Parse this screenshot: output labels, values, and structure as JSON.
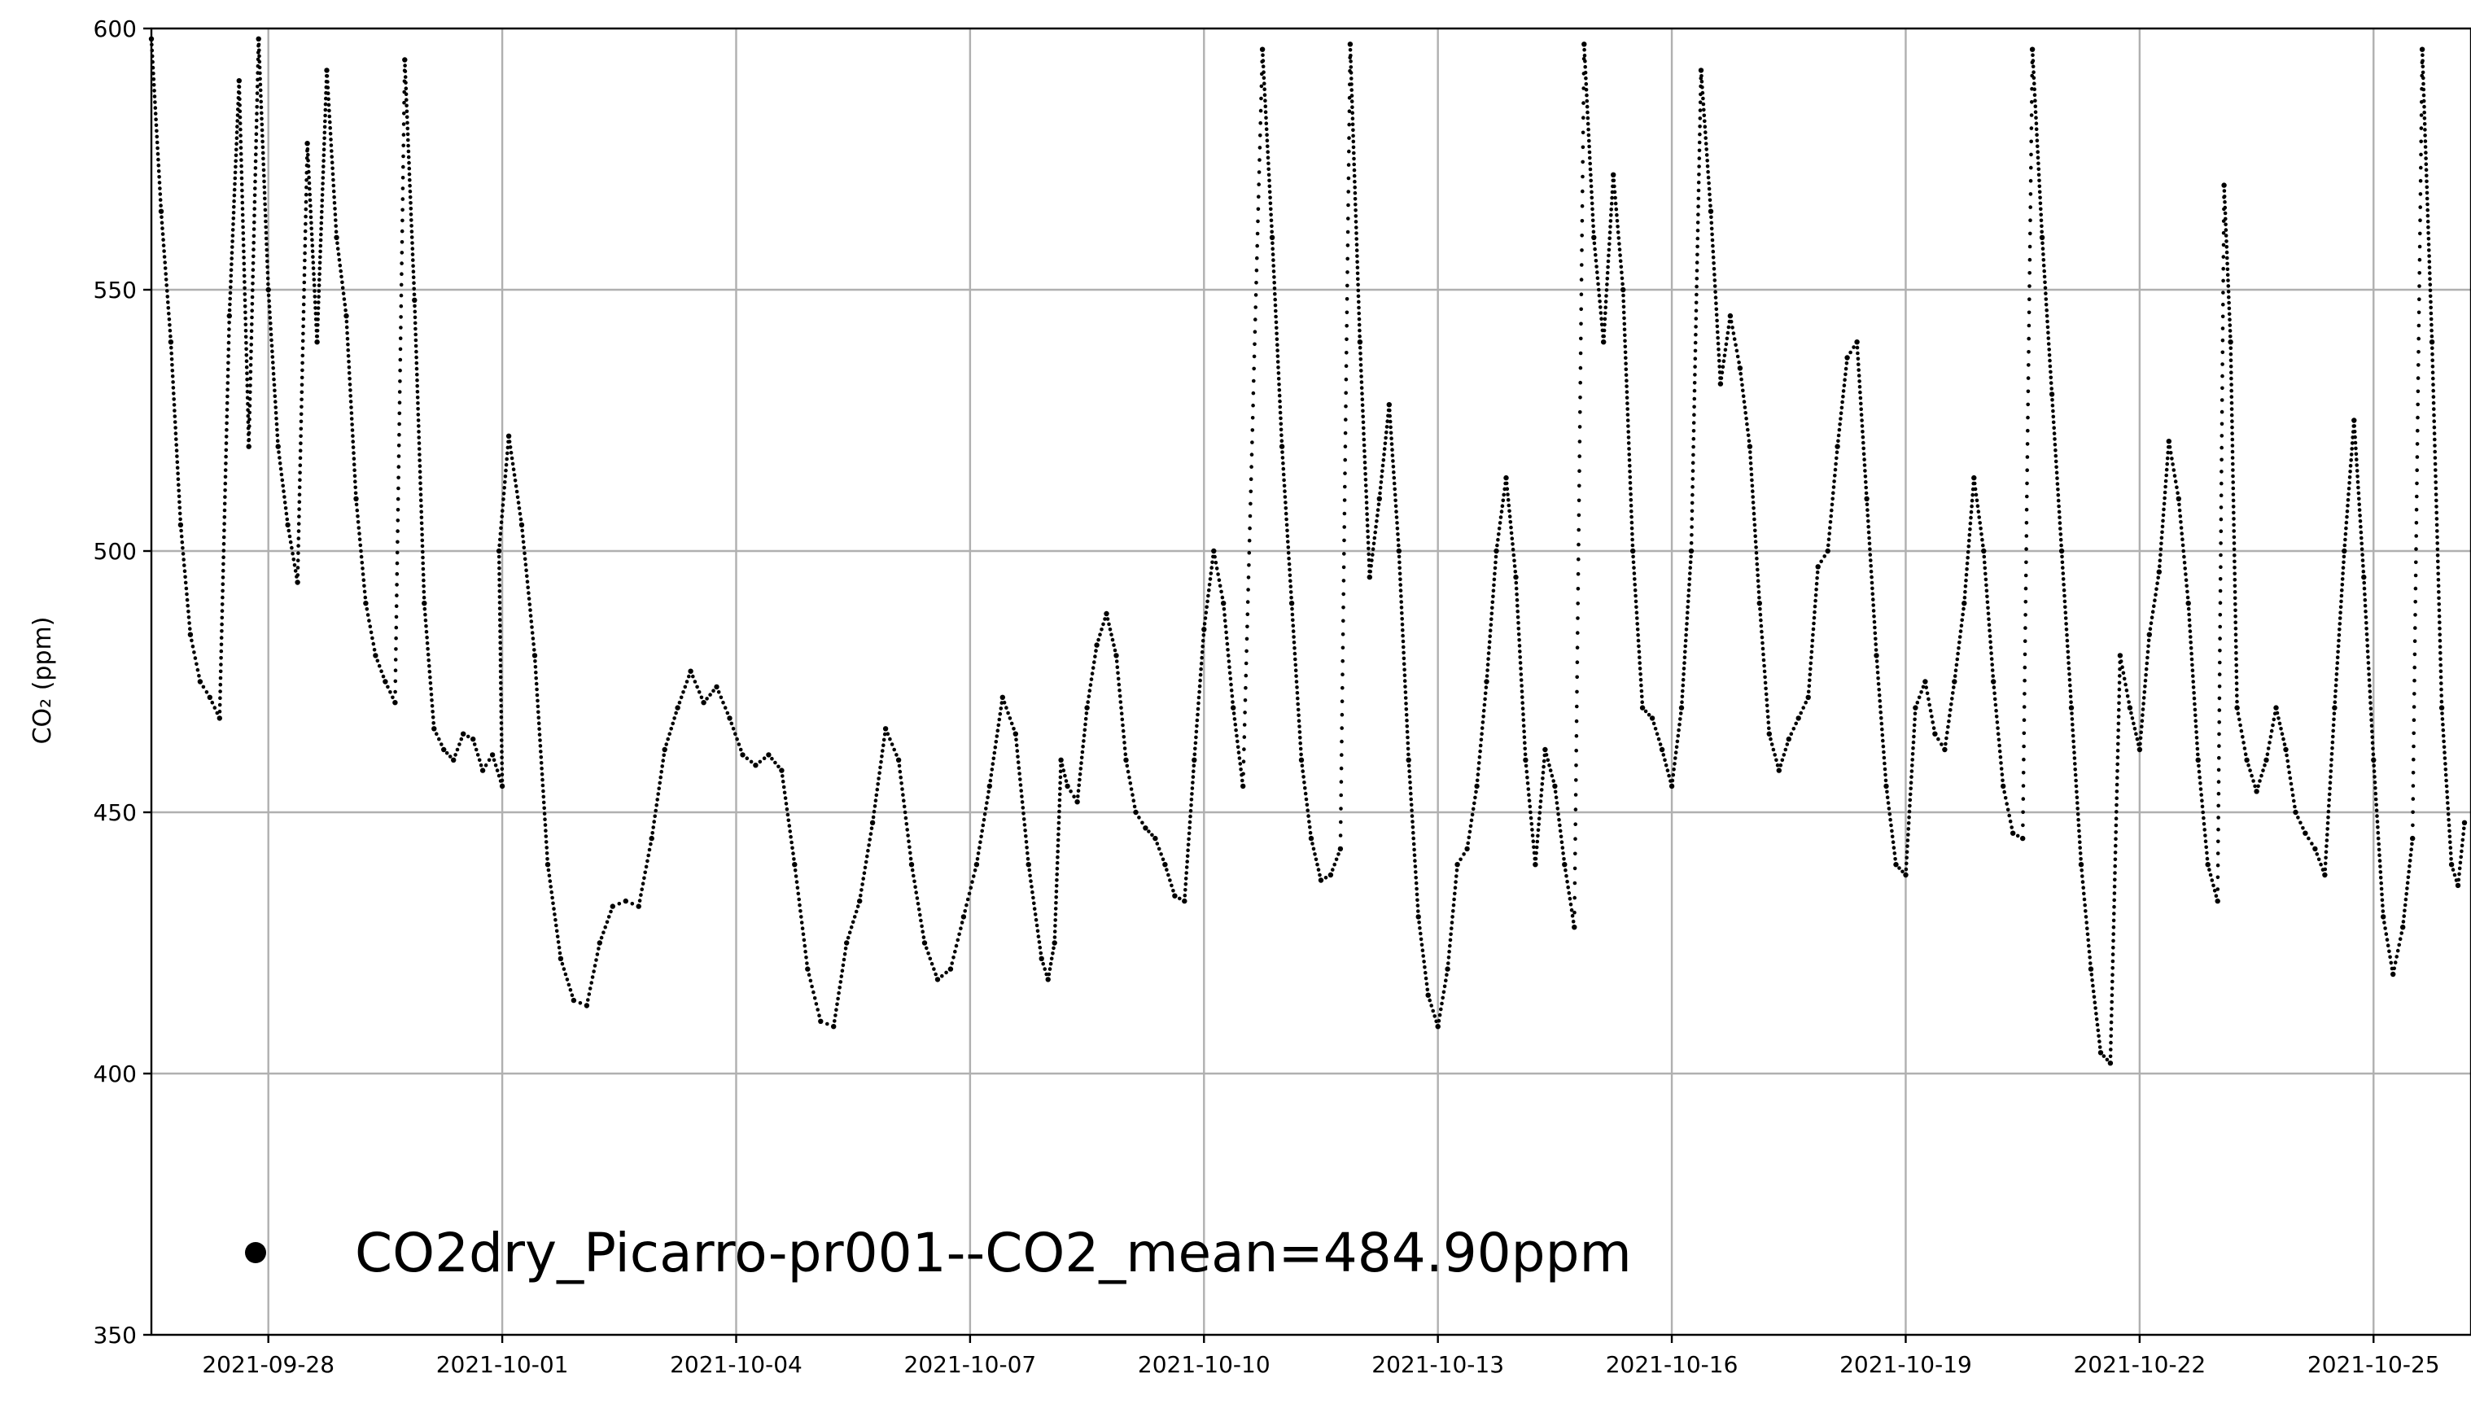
{
  "chart_data": {
    "type": "scatter",
    "title": "",
    "xlabel": "",
    "ylabel": "CO₂ (ppm)",
    "ylim": [
      350,
      600
    ],
    "xlim": [
      "2021-09-26T12:00",
      "2021-10-26T06:00"
    ],
    "grid": true,
    "legend_placement": "bottom-left",
    "marker_color": "#000000",
    "x_ticks": [
      "2021-09-28",
      "2021-10-01",
      "2021-10-04",
      "2021-10-07",
      "2021-10-10",
      "2021-10-13",
      "2021-10-16",
      "2021-10-19",
      "2021-10-22",
      "2021-10-25"
    ],
    "y_ticks": [
      350,
      400,
      450,
      500,
      550,
      600
    ],
    "series": [
      {
        "name": "CO2dry_Picarro-pr001--CO2_mean=484.90ppm",
        "points": [
          [
            "2021-09-26T12:00",
            598
          ],
          [
            "2021-09-26T15:00",
            565
          ],
          [
            "2021-09-26T18:00",
            540
          ],
          [
            "2021-09-26T21:00",
            505
          ],
          [
            "2021-09-27T00:00",
            484
          ],
          [
            "2021-09-27T03:00",
            475
          ],
          [
            "2021-09-27T06:00",
            472
          ],
          [
            "2021-09-27T09:00",
            468
          ],
          [
            "2021-09-27T12:00",
            545
          ],
          [
            "2021-09-27T15:00",
            590
          ],
          [
            "2021-09-27T18:00",
            520
          ],
          [
            "2021-09-27T21:00",
            598
          ],
          [
            "2021-09-28T00:00",
            550
          ],
          [
            "2021-09-28T03:00",
            520
          ],
          [
            "2021-09-28T06:00",
            505
          ],
          [
            "2021-09-28T09:00",
            494
          ],
          [
            "2021-09-28T12:00",
            578
          ],
          [
            "2021-09-28T15:00",
            540
          ],
          [
            "2021-09-28T18:00",
            592
          ],
          [
            "2021-09-28T21:00",
            560
          ],
          [
            "2021-09-29T00:00",
            545
          ],
          [
            "2021-09-29T03:00",
            510
          ],
          [
            "2021-09-29T06:00",
            490
          ],
          [
            "2021-09-29T09:00",
            480
          ],
          [
            "2021-09-29T12:00",
            475
          ],
          [
            "2021-09-29T15:00",
            471
          ],
          [
            "2021-09-29T18:00",
            594
          ],
          [
            "2021-09-29T21:00",
            548
          ],
          [
            "2021-09-30T00:00",
            490
          ],
          [
            "2021-09-30T03:00",
            466
          ],
          [
            "2021-09-30T06:00",
            462
          ],
          [
            "2021-09-30T09:00",
            460
          ],
          [
            "2021-09-30T12:00",
            465
          ],
          [
            "2021-09-30T15:00",
            464
          ],
          [
            "2021-09-30T18:00",
            458
          ],
          [
            "2021-09-30T21:00",
            461
          ],
          [
            "2021-10-01T00:00",
            455
          ],
          [
            "2021-09-30T23:00",
            500
          ],
          [
            "2021-10-01T02:00",
            522
          ],
          [
            "2021-10-01T06:00",
            505
          ],
          [
            "2021-10-01T10:00",
            480
          ],
          [
            "2021-10-01T14:00",
            440
          ],
          [
            "2021-10-01T18:00",
            422
          ],
          [
            "2021-10-01T22:00",
            414
          ],
          [
            "2021-10-02T02:00",
            413
          ],
          [
            "2021-10-02T06:00",
            425
          ],
          [
            "2021-10-02T10:00",
            432
          ],
          [
            "2021-10-02T14:00",
            433
          ],
          [
            "2021-10-02T18:00",
            432
          ],
          [
            "2021-10-02T22:00",
            445
          ],
          [
            "2021-10-03T02:00",
            462
          ],
          [
            "2021-10-03T06:00",
            470
          ],
          [
            "2021-10-03T10:00",
            477
          ],
          [
            "2021-10-03T14:00",
            471
          ],
          [
            "2021-10-03T18:00",
            474
          ],
          [
            "2021-10-03T22:00",
            468
          ],
          [
            "2021-10-04T02:00",
            461
          ],
          [
            "2021-10-04T06:00",
            459
          ],
          [
            "2021-10-04T10:00",
            461
          ],
          [
            "2021-10-04T14:00",
            458
          ],
          [
            "2021-10-04T18:00",
            440
          ],
          [
            "2021-10-04T22:00",
            420
          ],
          [
            "2021-10-05T02:00",
            410
          ],
          [
            "2021-10-05T06:00",
            409
          ],
          [
            "2021-10-05T10:00",
            425
          ],
          [
            "2021-10-05T14:00",
            433
          ],
          [
            "2021-10-05T18:00",
            448
          ],
          [
            "2021-10-05T22:00",
            466
          ],
          [
            "2021-10-06T02:00",
            460
          ],
          [
            "2021-10-06T06:00",
            440
          ],
          [
            "2021-10-06T10:00",
            425
          ],
          [
            "2021-10-06T14:00",
            418
          ],
          [
            "2021-10-06T18:00",
            420
          ],
          [
            "2021-10-06T22:00",
            430
          ],
          [
            "2021-10-07T02:00",
            440
          ],
          [
            "2021-10-07T06:00",
            455
          ],
          [
            "2021-10-07T10:00",
            472
          ],
          [
            "2021-10-07T14:00",
            465
          ],
          [
            "2021-10-07T18:00",
            440
          ],
          [
            "2021-10-07T22:00",
            422
          ],
          [
            "2021-10-08T00:00",
            418
          ],
          [
            "2021-10-08T02:00",
            425
          ],
          [
            "2021-10-08T04:00",
            460
          ],
          [
            "2021-10-08T06:00",
            455
          ],
          [
            "2021-10-08T09:00",
            452
          ],
          [
            "2021-10-08T12:00",
            470
          ],
          [
            "2021-10-08T15:00",
            482
          ],
          [
            "2021-10-08T18:00",
            488
          ],
          [
            "2021-10-08T21:00",
            480
          ],
          [
            "2021-10-09T00:00",
            460
          ],
          [
            "2021-10-09T03:00",
            450
          ],
          [
            "2021-10-09T06:00",
            447
          ],
          [
            "2021-10-09T09:00",
            445
          ],
          [
            "2021-10-09T12:00",
            440
          ],
          [
            "2021-10-09T15:00",
            434
          ],
          [
            "2021-10-09T18:00",
            433
          ],
          [
            "2021-10-09T21:00",
            460
          ],
          [
            "2021-10-10T00:00",
            485
          ],
          [
            "2021-10-10T03:00",
            500
          ],
          [
            "2021-10-10T06:00",
            490
          ],
          [
            "2021-10-10T09:00",
            470
          ],
          [
            "2021-10-10T12:00",
            455
          ],
          [
            "2021-10-10T18:00",
            596
          ],
          [
            "2021-10-10T21:00",
            560
          ],
          [
            "2021-10-11T00:00",
            520
          ],
          [
            "2021-10-11T03:00",
            490
          ],
          [
            "2021-10-11T06:00",
            460
          ],
          [
            "2021-10-11T09:00",
            445
          ],
          [
            "2021-10-11T12:00",
            437
          ],
          [
            "2021-10-11T15:00",
            438
          ],
          [
            "2021-10-11T18:00",
            443
          ],
          [
            "2021-10-11T21:00",
            597
          ],
          [
            "2021-10-12T00:00",
            540
          ],
          [
            "2021-10-12T03:00",
            495
          ],
          [
            "2021-10-12T06:00",
            510
          ],
          [
            "2021-10-12T09:00",
            528
          ],
          [
            "2021-10-12T12:00",
            500
          ],
          [
            "2021-10-12T15:00",
            460
          ],
          [
            "2021-10-12T18:00",
            430
          ],
          [
            "2021-10-12T21:00",
            415
          ],
          [
            "2021-10-13T00:00",
            409
          ],
          [
            "2021-10-13T03:00",
            420
          ],
          [
            "2021-10-13T06:00",
            440
          ],
          [
            "2021-10-13T09:00",
            443
          ],
          [
            "2021-10-13T12:00",
            455
          ],
          [
            "2021-10-13T15:00",
            475
          ],
          [
            "2021-10-13T18:00",
            500
          ],
          [
            "2021-10-13T21:00",
            514
          ],
          [
            "2021-10-14T00:00",
            495
          ],
          [
            "2021-10-14T03:00",
            460
          ],
          [
            "2021-10-14T06:00",
            440
          ],
          [
            "2021-10-14T09:00",
            462
          ],
          [
            "2021-10-14T12:00",
            455
          ],
          [
            "2021-10-14T15:00",
            440
          ],
          [
            "2021-10-14T18:00",
            428
          ],
          [
            "2021-10-14T21:00",
            597
          ],
          [
            "2021-10-15T00:00",
            560
          ],
          [
            "2021-10-15T03:00",
            540
          ],
          [
            "2021-10-15T06:00",
            572
          ],
          [
            "2021-10-15T09:00",
            550
          ],
          [
            "2021-10-15T12:00",
            500
          ],
          [
            "2021-10-15T15:00",
            470
          ],
          [
            "2021-10-15T18:00",
            468
          ],
          [
            "2021-10-15T21:00",
            462
          ],
          [
            "2021-10-16T00:00",
            455
          ],
          [
            "2021-10-16T03:00",
            470
          ],
          [
            "2021-10-16T06:00",
            500
          ],
          [
            "2021-10-16T09:00",
            592
          ],
          [
            "2021-10-16T12:00",
            565
          ],
          [
            "2021-10-16T15:00",
            532
          ],
          [
            "2021-10-16T18:00",
            545
          ],
          [
            "2021-10-16T21:00",
            535
          ],
          [
            "2021-10-17T00:00",
            520
          ],
          [
            "2021-10-17T03:00",
            490
          ],
          [
            "2021-10-17T06:00",
            465
          ],
          [
            "2021-10-17T09:00",
            458
          ],
          [
            "2021-10-17T12:00",
            464
          ],
          [
            "2021-10-17T15:00",
            468
          ],
          [
            "2021-10-17T18:00",
            472
          ],
          [
            "2021-10-17T21:00",
            497
          ],
          [
            "2021-10-18T00:00",
            500
          ],
          [
            "2021-10-18T03:00",
            520
          ],
          [
            "2021-10-18T06:00",
            537
          ],
          [
            "2021-10-18T09:00",
            540
          ],
          [
            "2021-10-18T12:00",
            510
          ],
          [
            "2021-10-18T15:00",
            480
          ],
          [
            "2021-10-18T18:00",
            455
          ],
          [
            "2021-10-18T21:00",
            440
          ],
          [
            "2021-10-19T00:00",
            438
          ],
          [
            "2021-10-19T03:00",
            470
          ],
          [
            "2021-10-19T06:00",
            475
          ],
          [
            "2021-10-19T09:00",
            465
          ],
          [
            "2021-10-19T12:00",
            462
          ],
          [
            "2021-10-19T15:00",
            475
          ],
          [
            "2021-10-19T18:00",
            490
          ],
          [
            "2021-10-19T21:00",
            514
          ],
          [
            "2021-10-20T00:00",
            500
          ],
          [
            "2021-10-20T03:00",
            475
          ],
          [
            "2021-10-20T06:00",
            455
          ],
          [
            "2021-10-20T09:00",
            446
          ],
          [
            "2021-10-20T12:00",
            445
          ],
          [
            "2021-10-20T15:00",
            596
          ],
          [
            "2021-10-20T18:00",
            560
          ],
          [
            "2021-10-20T21:00",
            530
          ],
          [
            "2021-10-21T00:00",
            500
          ],
          [
            "2021-10-21T03:00",
            470
          ],
          [
            "2021-10-21T06:00",
            440
          ],
          [
            "2021-10-21T09:00",
            420
          ],
          [
            "2021-10-21T12:00",
            404
          ],
          [
            "2021-10-21T15:00",
            402
          ],
          [
            "2021-10-21T18:00",
            480
          ],
          [
            "2021-10-21T21:00",
            470
          ],
          [
            "2021-10-22T00:00",
            462
          ],
          [
            "2021-10-22T03:00",
            484
          ],
          [
            "2021-10-22T06:00",
            496
          ],
          [
            "2021-10-22T09:00",
            521
          ],
          [
            "2021-10-22T12:00",
            510
          ],
          [
            "2021-10-22T15:00",
            490
          ],
          [
            "2021-10-22T18:00",
            460
          ],
          [
            "2021-10-22T21:00",
            440
          ],
          [
            "2021-10-23T00:00",
            433
          ],
          [
            "2021-10-23T02:00",
            570
          ],
          [
            "2021-10-23T04:00",
            540
          ],
          [
            "2021-10-23T06:00",
            470
          ],
          [
            "2021-10-23T09:00",
            460
          ],
          [
            "2021-10-23T12:00",
            454
          ],
          [
            "2021-10-23T15:00",
            460
          ],
          [
            "2021-10-23T18:00",
            470
          ],
          [
            "2021-10-23T21:00",
            462
          ],
          [
            "2021-10-24T00:00",
            450
          ],
          [
            "2021-10-24T03:00",
            446
          ],
          [
            "2021-10-24T06:00",
            443
          ],
          [
            "2021-10-24T09:00",
            438
          ],
          [
            "2021-10-24T12:00",
            470
          ],
          [
            "2021-10-24T15:00",
            500
          ],
          [
            "2021-10-24T18:00",
            525
          ],
          [
            "2021-10-24T21:00",
            495
          ],
          [
            "2021-10-25T00:00",
            460
          ],
          [
            "2021-10-25T03:00",
            430
          ],
          [
            "2021-10-25T06:00",
            419
          ],
          [
            "2021-10-25T09:00",
            428
          ],
          [
            "2021-10-25T12:00",
            445
          ],
          [
            "2021-10-25T15:00",
            596
          ],
          [
            "2021-10-25T18:00",
            540
          ],
          [
            "2021-10-25T21:00",
            470
          ],
          [
            "2021-10-26T00:00",
            440
          ],
          [
            "2021-10-26T02:00",
            436
          ],
          [
            "2021-10-26T04:00",
            448
          ]
        ]
      }
    ]
  }
}
